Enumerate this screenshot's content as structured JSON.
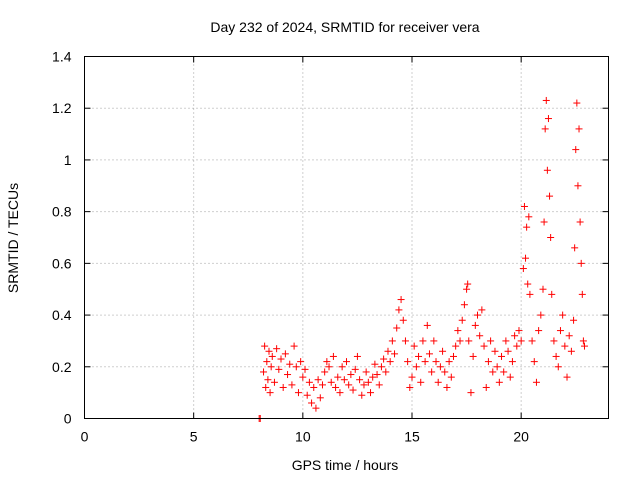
{
  "chart_data": {
    "type": "scatter",
    "title": "Day 232 of 2024, SRMTID for receiver vera",
    "xlabel": "GPS time / hours",
    "ylabel": "SRMTID / TECUs",
    "xlim": [
      0,
      24
    ],
    "ylim": [
      0,
      1.4
    ],
    "x_ticks": [
      0,
      5,
      10,
      15,
      20
    ],
    "x_tick_labels": [
      "0",
      "5",
      "10",
      "15",
      "20"
    ],
    "y_ticks": [
      0,
      0.2,
      0.4,
      0.6,
      0.8,
      1.0,
      1.2,
      1.4
    ],
    "y_tick_labels": [
      "0",
      "0.2",
      "0.4",
      "0.6",
      "0.8",
      "1",
      "1.2",
      "1.4"
    ],
    "grid": true,
    "marker": "+",
    "color": "#ff0000",
    "series": [
      {
        "name": "SRMTID",
        "points": [
          [
            8.0,
            0.0
          ],
          [
            8.05,
            0.0
          ],
          [
            8.2,
            0.18
          ],
          [
            8.25,
            0.28
          ],
          [
            8.3,
            0.12
          ],
          [
            8.35,
            0.22
          ],
          [
            8.4,
            0.15
          ],
          [
            8.45,
            0.26
          ],
          [
            8.5,
            0.1
          ],
          [
            8.55,
            0.2
          ],
          [
            8.6,
            0.24
          ],
          [
            8.7,
            0.14
          ],
          [
            8.8,
            0.27
          ],
          [
            8.9,
            0.19
          ],
          [
            9.0,
            0.23
          ],
          [
            9.1,
            0.12
          ],
          [
            9.2,
            0.25
          ],
          [
            9.3,
            0.17
          ],
          [
            9.4,
            0.21
          ],
          [
            9.5,
            0.13
          ],
          [
            9.6,
            0.28
          ],
          [
            9.7,
            0.2
          ],
          [
            9.8,
            0.1
          ],
          [
            9.9,
            0.22
          ],
          [
            10.0,
            0.16
          ],
          [
            10.1,
            0.19
          ],
          [
            10.2,
            0.09
          ],
          [
            10.3,
            0.14
          ],
          [
            10.4,
            0.06
          ],
          [
            10.5,
            0.12
          ],
          [
            10.6,
            0.04
          ],
          [
            10.7,
            0.15
          ],
          [
            10.8,
            0.08
          ],
          [
            10.9,
            0.13
          ],
          [
            11.0,
            0.18
          ],
          [
            11.1,
            0.22
          ],
          [
            11.2,
            0.2
          ],
          [
            11.3,
            0.14
          ],
          [
            11.4,
            0.24
          ],
          [
            11.5,
            0.12
          ],
          [
            11.6,
            0.16
          ],
          [
            11.7,
            0.1
          ],
          [
            11.8,
            0.2
          ],
          [
            11.9,
            0.15
          ],
          [
            12.0,
            0.22
          ],
          [
            12.1,
            0.13
          ],
          [
            12.2,
            0.17
          ],
          [
            12.3,
            0.11
          ],
          [
            12.4,
            0.19
          ],
          [
            12.5,
            0.24
          ],
          [
            12.6,
            0.15
          ],
          [
            12.7,
            0.09
          ],
          [
            12.8,
            0.13
          ],
          [
            12.9,
            0.18
          ],
          [
            13.0,
            0.14
          ],
          [
            13.1,
            0.1
          ],
          [
            13.2,
            0.16
          ],
          [
            13.3,
            0.21
          ],
          [
            13.4,
            0.17
          ],
          [
            13.5,
            0.13
          ],
          [
            13.6,
            0.2
          ],
          [
            13.7,
            0.23
          ],
          [
            13.8,
            0.18
          ],
          [
            13.9,
            0.26
          ],
          [
            14.0,
            0.22
          ],
          [
            14.1,
            0.3
          ],
          [
            14.2,
            0.25
          ],
          [
            14.3,
            0.35
          ],
          [
            14.4,
            0.42
          ],
          [
            14.5,
            0.46
          ],
          [
            14.6,
            0.38
          ],
          [
            14.7,
            0.3
          ],
          [
            14.8,
            0.22
          ],
          [
            14.9,
            0.12
          ],
          [
            15.0,
            0.16
          ],
          [
            15.1,
            0.28
          ],
          [
            15.2,
            0.2
          ],
          [
            15.3,
            0.24
          ],
          [
            15.4,
            0.14
          ],
          [
            15.5,
            0.3
          ],
          [
            15.6,
            0.22
          ],
          [
            15.7,
            0.36
          ],
          [
            15.8,
            0.25
          ],
          [
            15.9,
            0.18
          ],
          [
            16.0,
            0.3
          ],
          [
            16.1,
            0.22
          ],
          [
            16.2,
            0.14
          ],
          [
            16.3,
            0.2
          ],
          [
            16.4,
            0.26
          ],
          [
            16.5,
            0.18
          ],
          [
            16.6,
            0.12
          ],
          [
            16.7,
            0.22
          ],
          [
            16.8,
            0.16
          ],
          [
            16.9,
            0.24
          ],
          [
            17.0,
            0.28
          ],
          [
            17.1,
            0.34
          ],
          [
            17.2,
            0.3
          ],
          [
            17.3,
            0.38
          ],
          [
            17.4,
            0.44
          ],
          [
            17.5,
            0.5
          ],
          [
            17.55,
            0.52
          ],
          [
            17.6,
            0.3
          ],
          [
            17.7,
            0.1
          ],
          [
            17.8,
            0.24
          ],
          [
            17.9,
            0.36
          ],
          [
            18.0,
            0.4
          ],
          [
            18.1,
            0.32
          ],
          [
            18.2,
            0.42
          ],
          [
            18.3,
            0.28
          ],
          [
            18.4,
            0.12
          ],
          [
            18.5,
            0.22
          ],
          [
            18.6,
            0.3
          ],
          [
            18.7,
            0.18
          ],
          [
            18.8,
            0.26
          ],
          [
            18.9,
            0.2
          ],
          [
            19.0,
            0.14
          ],
          [
            19.1,
            0.24
          ],
          [
            19.2,
            0.18
          ],
          [
            19.3,
            0.3
          ],
          [
            19.4,
            0.26
          ],
          [
            19.5,
            0.16
          ],
          [
            19.6,
            0.22
          ],
          [
            19.7,
            0.32
          ],
          [
            19.8,
            0.28
          ],
          [
            19.9,
            0.34
          ],
          [
            20.0,
            0.3
          ],
          [
            20.1,
            0.58
          ],
          [
            20.15,
            0.82
          ],
          [
            20.2,
            0.62
          ],
          [
            20.25,
            0.74
          ],
          [
            20.3,
            0.52
          ],
          [
            20.35,
            0.78
          ],
          [
            20.4,
            0.48
          ],
          [
            20.5,
            0.3
          ],
          [
            20.6,
            0.22
          ],
          [
            20.7,
            0.14
          ],
          [
            20.8,
            0.34
          ],
          [
            20.9,
            0.4
          ],
          [
            21.0,
            0.5
          ],
          [
            21.05,
            0.76
          ],
          [
            21.1,
            1.12
          ],
          [
            21.15,
            1.23
          ],
          [
            21.2,
            0.96
          ],
          [
            21.25,
            1.16
          ],
          [
            21.3,
            0.86
          ],
          [
            21.35,
            0.7
          ],
          [
            21.4,
            0.48
          ],
          [
            21.5,
            0.3
          ],
          [
            21.6,
            0.24
          ],
          [
            21.7,
            0.2
          ],
          [
            21.8,
            0.34
          ],
          [
            21.9,
            0.4
          ],
          [
            22.0,
            0.28
          ],
          [
            22.1,
            0.16
          ],
          [
            22.2,
            0.32
          ],
          [
            22.3,
            0.26
          ],
          [
            22.4,
            0.38
          ],
          [
            22.45,
            0.66
          ],
          [
            22.5,
            1.04
          ],
          [
            22.55,
            1.22
          ],
          [
            22.6,
            0.9
          ],
          [
            22.65,
            1.12
          ],
          [
            22.7,
            0.76
          ],
          [
            22.75,
            0.6
          ],
          [
            22.8,
            0.48
          ],
          [
            22.85,
            0.3
          ],
          [
            22.9,
            0.28
          ]
        ]
      }
    ]
  }
}
